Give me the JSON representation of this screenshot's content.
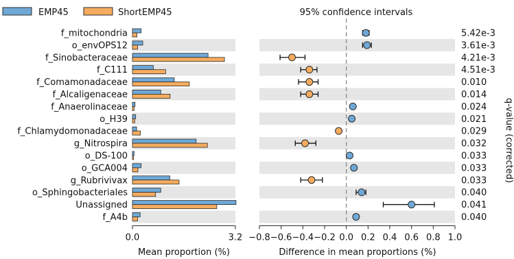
{
  "colors": {
    "group1": "#6fa8d6",
    "group2": "#f5ac5e",
    "stripe": "#e6e6e6",
    "zero_line": "#8a8a8a",
    "axis": "#222222",
    "edge": "#2b2b2b"
  },
  "legend": {
    "group1": "EMP45",
    "group2": "ShortEMP45"
  },
  "chart_data": [
    {
      "type": "bar",
      "orientation": "horizontal",
      "title": "",
      "xlabel": "Mean proportion (%)",
      "xlim": [
        0,
        3.2
      ],
      "xticks": [
        "0.0",
        "3.2"
      ],
      "categories": [
        "f_mitochondria",
        "o_envOPS12",
        "f_Sinobacteraceae",
        "f_C111",
        "f_Comamonadaceae",
        "f_Alcaligenaceae",
        "f_Anaerolinaceae",
        "o_H39",
        "f_Chlamydomonadaceae",
        "g_Nitrospira",
        "o_DS-100",
        "o_GCA004",
        "g_Rubrivivax",
        "o_Sphingobacteriales",
        "Unassigned",
        "f_A4b"
      ],
      "series": [
        {
          "name": "EMP45",
          "values": [
            0.27,
            0.32,
            2.35,
            0.65,
            1.3,
            0.88,
            0.08,
            0.1,
            0.13,
            1.98,
            0.05,
            0.27,
            1.16,
            0.88,
            3.22,
            0.24
          ]
        },
        {
          "name": "ShortEMP45",
          "values": [
            0.14,
            0.16,
            2.86,
            1.03,
            1.77,
            1.17,
            0.05,
            0.07,
            0.25,
            2.33,
            0.03,
            0.17,
            1.45,
            0.72,
            2.62,
            0.16
          ]
        }
      ],
      "grid": false
    },
    {
      "type": "scatter",
      "subtype": "confidence_interval",
      "title": "95% confidence intervals",
      "xlabel": "Difference in mean proportions (%)",
      "xlim": [
        -0.8,
        1.0
      ],
      "xticks": [
        "−0.8",
        "−0.6",
        "−0.4",
        "−0.2",
        "0.0",
        "0.2",
        "0.4",
        "0.6",
        "0.8",
        "1.0"
      ],
      "categories": [
        "f_mitochondria",
        "o_envOPS12",
        "f_Sinobacteraceae",
        "f_C111",
        "f_Comamonadaceae",
        "f_Alcaligenaceae",
        "f_Anaerolinaceae",
        "o_H39",
        "f_Chlamydomonadaceae",
        "g_Nitrospira",
        "o_DS-100",
        "o_GCA004",
        "g_Rubrivivax",
        "o_Sphingobacteriales",
        "Unassigned",
        "f_A4b"
      ],
      "effect": [
        0.18,
        0.19,
        -0.5,
        -0.34,
        -0.34,
        -0.34,
        0.06,
        0.05,
        -0.07,
        -0.38,
        0.03,
        0.07,
        -0.32,
        0.14,
        0.6,
        0.09
      ],
      "ci_low": [
        0.15,
        0.15,
        -0.61,
        -0.42,
        -0.44,
        -0.42,
        0.05,
        0.04,
        -0.08,
        -0.47,
        0.02,
        0.05,
        -0.42,
        0.09,
        0.34,
        0.07
      ],
      "ci_high": [
        0.21,
        0.23,
        -0.38,
        -0.27,
        -0.26,
        -0.26,
        0.07,
        0.06,
        -0.06,
        -0.28,
        0.04,
        0.08,
        -0.22,
        0.18,
        0.81,
        0.11
      ],
      "favors": [
        "EMP45",
        "EMP45",
        "ShortEMP45",
        "ShortEMP45",
        "ShortEMP45",
        "ShortEMP45",
        "EMP45",
        "EMP45",
        "ShortEMP45",
        "ShortEMP45",
        "EMP45",
        "EMP45",
        "ShortEMP45",
        "EMP45",
        "EMP45",
        "EMP45"
      ],
      "right_axis_label": "q-value (corrected)",
      "q_values": [
        "5.42e-3",
        "3.61e-3",
        "4.21e-3",
        "4.51e-3",
        "0.010",
        "0.014",
        "0.024",
        "0.021",
        "0.029",
        "0.032",
        "0.033",
        "0.033",
        "0.033",
        "0.040",
        "0.041",
        "0.040"
      ]
    }
  ]
}
